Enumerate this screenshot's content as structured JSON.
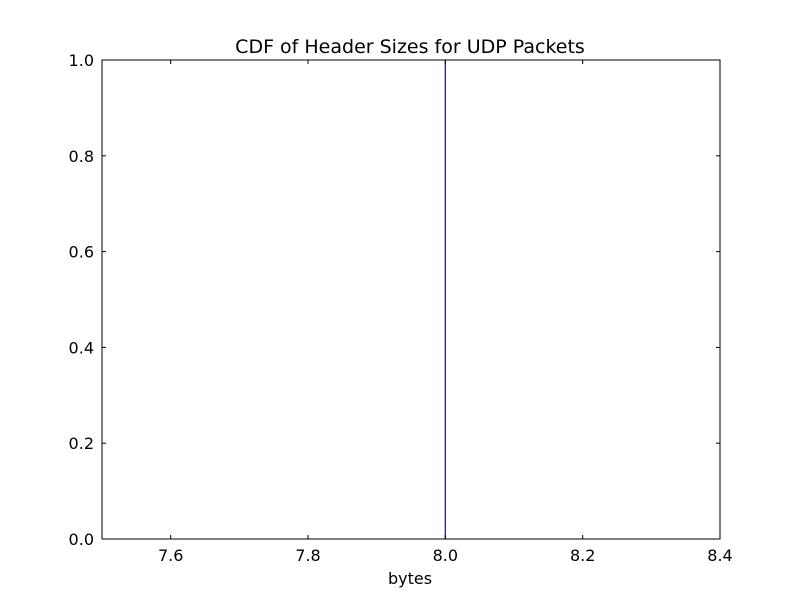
{
  "chart_data": {
    "type": "line",
    "title": "CDF of Header Sizes for UDP Packets",
    "xlabel": "bytes",
    "ylabel": "",
    "xlim": [
      7.5,
      8.4
    ],
    "ylim": [
      0.0,
      1.0
    ],
    "xticks": [
      7.6,
      7.8,
      8.0,
      8.2,
      8.4
    ],
    "xtick_labels": [
      "7.6",
      "7.8",
      "8.0",
      "8.2",
      "8.4"
    ],
    "yticks": [
      0.0,
      0.2,
      0.4,
      0.6,
      0.8,
      1.0
    ],
    "ytick_labels": [
      "0.0",
      "0.2",
      "0.4",
      "0.6",
      "0.8",
      "1.0"
    ],
    "grid": false,
    "series": [
      {
        "color": "#0000ff",
        "x": [
          8.0,
          8.0
        ],
        "y": [
          0.0,
          1.0
        ]
      }
    ]
  }
}
